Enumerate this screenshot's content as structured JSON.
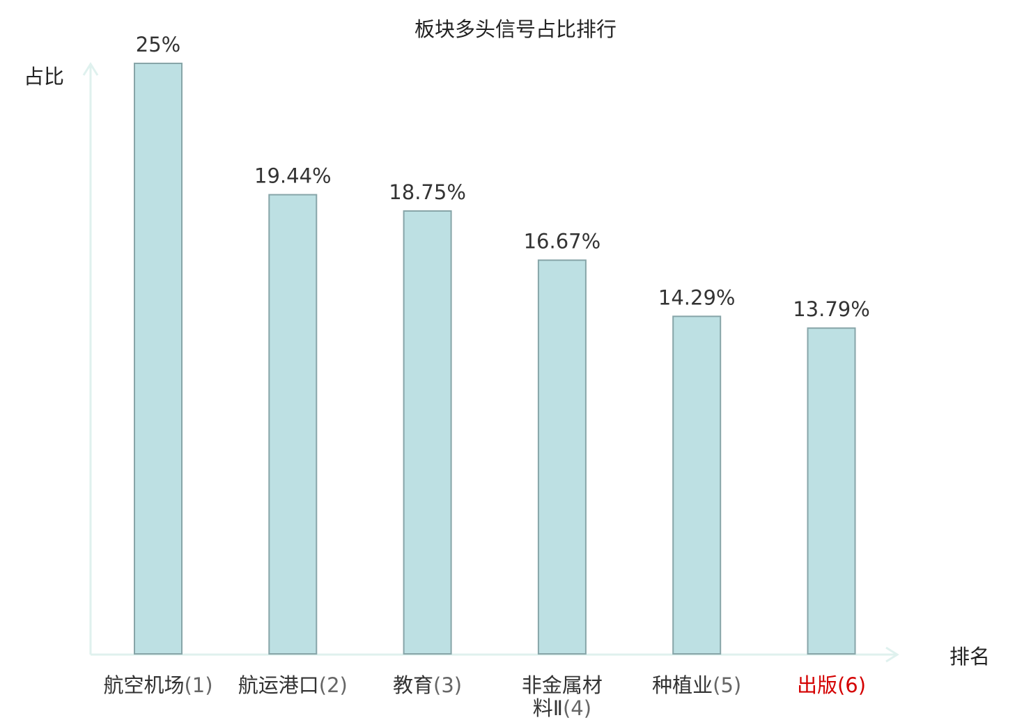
{
  "chart_data": {
    "type": "bar",
    "title": "板块多头信号占比排行",
    "xlabel": "排名",
    "ylabel": "占比",
    "categories": [
      {
        "name": "航空机场",
        "rank": "(1)",
        "highlight": false
      },
      {
        "name": "航运港口",
        "rank": "(2)",
        "highlight": false
      },
      {
        "name": "教育",
        "rank": "(3)",
        "highlight": false
      },
      {
        "name": "非金属材料Ⅱ",
        "rank": "(4)",
        "highlight": false
      },
      {
        "name": "种植业",
        "rank": "(5)",
        "highlight": false
      },
      {
        "name": "出版",
        "rank": "(6)",
        "highlight": true
      }
    ],
    "values": [
      25,
      19.44,
      18.75,
      16.67,
      14.29,
      13.79
    ],
    "value_labels": [
      "25%",
      "19.44%",
      "18.75%",
      "16.67%",
      "14.29%",
      "13.79%"
    ],
    "ylim": [
      0,
      25
    ],
    "grid": false,
    "colors": {
      "bar_fill": "#bde0e3",
      "bar_stroke": "#87a5a8",
      "axis": "#dff1ee",
      "text": "#333333",
      "category_text": "#333333",
      "rank_text": "#666666",
      "highlight_text": "#d40000"
    }
  }
}
